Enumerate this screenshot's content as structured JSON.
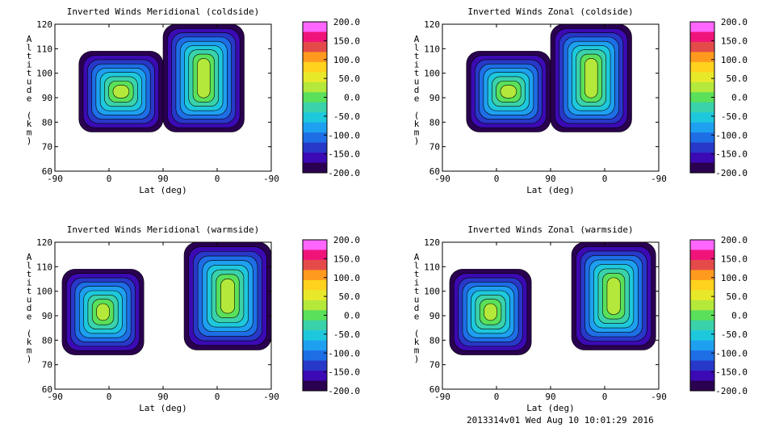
{
  "footer": "2013314v01 Wed Aug 10 10:01:29 2016",
  "colorbar_ticks": [
    "200.0",
    "150.0",
    "100.0",
    "50.0",
    "0.0",
    "-50.0",
    "-100.0",
    "-150.0",
    "-200.0"
  ],
  "colorbar_colors": [
    "#ff66ff",
    "#f0147a",
    "#e44a4a",
    "#ff9a1e",
    "#ffd21e",
    "#e8e82a",
    "#b4e83a",
    "#5ae05a",
    "#3ad2aa",
    "#1ec8dc",
    "#1ea0f0",
    "#1e6ee6",
    "#2838c8",
    "#3c0ab4",
    "#2a0050"
  ],
  "chart_data": [
    {
      "type": "heatmap",
      "title": "Inverted Winds Meridional (coldside)",
      "xlabel": "Lat (deg)",
      "ylabel": "Altitude (km)",
      "x_ticks": [
        "-90",
        "0",
        "90",
        "0",
        "-90"
      ],
      "y_ticks": [
        "60",
        "70",
        "80",
        "90",
        "100",
        "110",
        "120"
      ],
      "ylim": [
        60,
        120
      ],
      "clim": [
        -200,
        200
      ],
      "grid": false,
      "regions": [
        {
          "x_range": [
            -50,
            90
          ],
          "alt_range": [
            76,
            109
          ]
        },
        {
          "x_range": [
            90,
            225
          ],
          "alt_range": [
            76,
            120
          ]
        }
      ]
    },
    {
      "type": "heatmap",
      "title": "Inverted Winds Zonal (coldside)",
      "xlabel": "Lat (deg)",
      "ylabel": "Altitude (km)",
      "x_ticks": [
        "-90",
        "0",
        "90",
        "0",
        "-90"
      ],
      "y_ticks": [
        "60",
        "70",
        "80",
        "90",
        "100",
        "110",
        "120"
      ],
      "ylim": [
        60,
        120
      ],
      "clim": [
        -200,
        200
      ],
      "grid": false,
      "regions": [
        {
          "x_range": [
            -50,
            90
          ],
          "alt_range": [
            76,
            109
          ]
        },
        {
          "x_range": [
            90,
            225
          ],
          "alt_range": [
            76,
            120
          ]
        }
      ]
    },
    {
      "type": "heatmap",
      "title": "Inverted Winds Meridional (warmside)",
      "xlabel": "Lat (deg)",
      "ylabel": "Altitude (km)",
      "x_ticks": [
        "-90",
        "0",
        "90",
        "0",
        "-90"
      ],
      "y_ticks": [
        "60",
        "70",
        "80",
        "90",
        "100",
        "110",
        "120"
      ],
      "ylim": [
        60,
        120
      ],
      "clim": [
        -200,
        200
      ],
      "grid": false,
      "regions": [
        {
          "x_range": [
            -78,
            58
          ],
          "alt_range": [
            74,
            109
          ]
        },
        {
          "x_range": [
            125,
            270
          ],
          "alt_range": [
            76,
            120
          ]
        }
      ]
    },
    {
      "type": "heatmap",
      "title": "Inverted Winds Zonal (warmside)",
      "xlabel": "Lat (deg)",
      "ylabel": "Altitude (km)",
      "x_ticks": [
        "-90",
        "0",
        "90",
        "0",
        "-90"
      ],
      "y_ticks": [
        "60",
        "70",
        "80",
        "90",
        "100",
        "110",
        "120"
      ],
      "ylim": [
        60,
        120
      ],
      "clim": [
        -200,
        200
      ],
      "grid": false,
      "regions": [
        {
          "x_range": [
            -78,
            58
          ],
          "alt_range": [
            74,
            109
          ]
        },
        {
          "x_range": [
            125,
            265
          ],
          "alt_range": [
            76,
            120
          ]
        }
      ]
    }
  ]
}
